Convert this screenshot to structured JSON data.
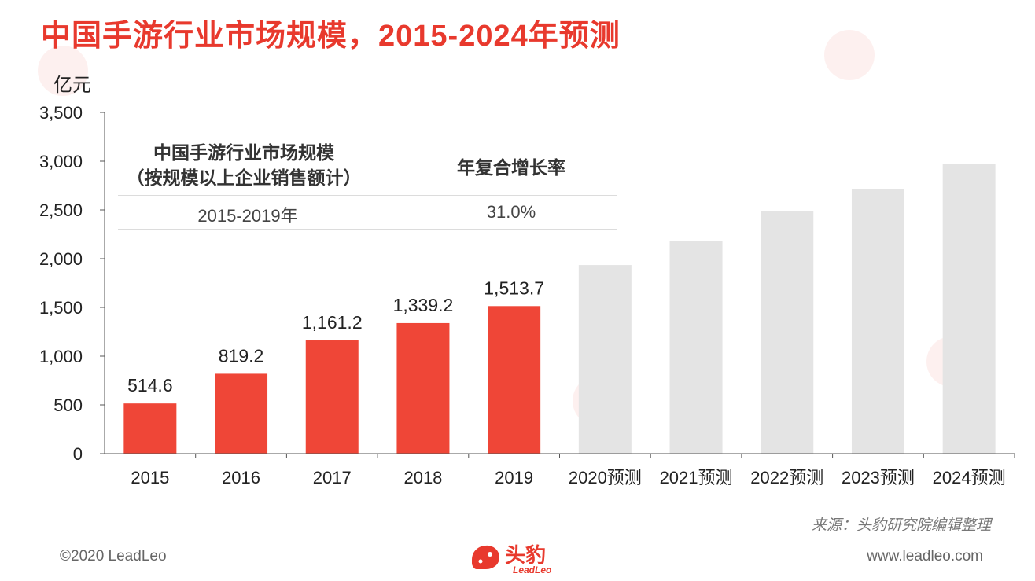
{
  "title": "中国手游行业市场规模，2015-2024年预测",
  "unit": "亿元",
  "cagr_table": {
    "header_left": "中国手游行业市场规模\n（按规模以上企业销售额计）",
    "header_right": "年复合增长率",
    "period": "2015-2019年",
    "rate": "31.0%"
  },
  "chart_data": {
    "type": "bar",
    "title": "中国手游行业市场规模，2015-2024年预测",
    "ylabel": "亿元",
    "xlabel": "",
    "ylim": [
      0,
      3500
    ],
    "yticks": [
      0,
      500,
      1000,
      1500,
      2000,
      2500,
      3000,
      3500
    ],
    "ytick_labels": [
      "0",
      "500",
      "1,000",
      "1,500",
      "2,000",
      "2,500",
      "3,000",
      "3,500"
    ],
    "categories": [
      "2015",
      "2016",
      "2017",
      "2018",
      "2019",
      "2020预测",
      "2021预测",
      "2022预测",
      "2023预测",
      "2024预测"
    ],
    "values": [
      514.6,
      819.2,
      1161.2,
      1339.2,
      1513.7,
      1935,
      2185,
      2490,
      2710,
      2975
    ],
    "data_labels": [
      "514.6",
      "819.2",
      "1,161.2",
      "1,339.2",
      "1,513.7",
      "",
      "",
      "",
      "",
      ""
    ],
    "bar_colors": [
      "#ef4637",
      "#ef4637",
      "#ef4637",
      "#ef4637",
      "#ef4637",
      "#e4e4e4",
      "#e4e4e4",
      "#e4e4e4",
      "#e4e4e4",
      "#e4e4e4"
    ],
    "grid": false
  },
  "source": "来源：头豹研究院编辑整理",
  "copyright": "©2020 LeadLeo",
  "website": "www.leadleo.com",
  "logo": {
    "cn": "头豹",
    "en": "LeadLeo"
  },
  "colors": {
    "accent": "#e8392d",
    "actual_bar": "#ef4637",
    "forecast_bar": "#e4e4e4"
  }
}
